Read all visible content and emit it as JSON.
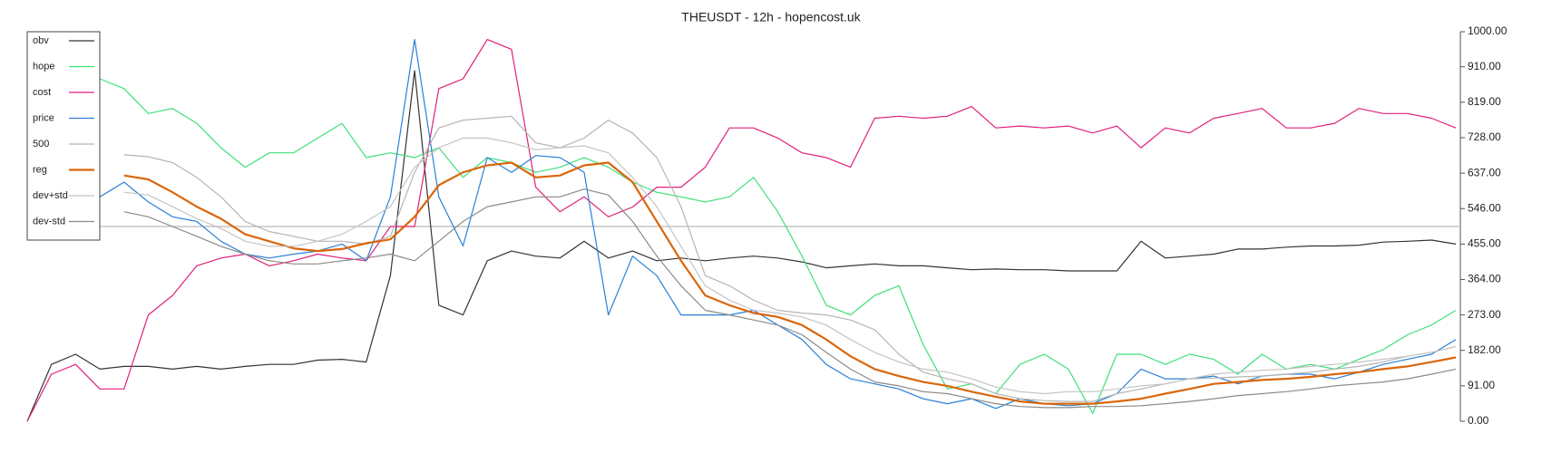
{
  "chart_data": {
    "type": "line",
    "title": "THEUSDT - 12h - hopencost.uk",
    "ylim": [
      0,
      1000
    ],
    "yticks": [
      {
        "value": 0,
        "label": "0.00"
      },
      {
        "value": 91,
        "label": "91.00"
      },
      {
        "value": 182,
        "label": "182.00"
      },
      {
        "value": 273,
        "label": "273.00"
      },
      {
        "value": 364,
        "label": "364.00"
      },
      {
        "value": 455,
        "label": "455.00"
      },
      {
        "value": 546,
        "label": "546.00"
      },
      {
        "value": 637,
        "label": "637.00"
      },
      {
        "value": 728,
        "label": "728.00"
      },
      {
        "value": 819,
        "label": "819.00"
      },
      {
        "value": 910,
        "label": "910.00"
      },
      {
        "value": 1000,
        "label": "1000.00"
      }
    ],
    "reference_line": 500,
    "legend": "upper left",
    "series": [
      {
        "name": "obv",
        "color": "#333333",
        "values": [
          0,
          146,
          172,
          134,
          141,
          141,
          134,
          141,
          134,
          141,
          146,
          146,
          157,
          159,
          152,
          374,
          900,
          298,
          273,
          412,
          437,
          424,
          419,
          462,
          419,
          437,
          412,
          419,
          412,
          419,
          424,
          419,
          409,
          394,
          399,
          404,
          399,
          399,
          394,
          389,
          391,
          389,
          389,
          386,
          386,
          386,
          462,
          419,
          424,
          429,
          442,
          442,
          447,
          450,
          450,
          452,
          460,
          462,
          465,
          455
        ]
      },
      {
        "name": "hope",
        "color": "#3ee07a",
        "values": [
          null,
          null,
          null,
          879,
          854,
          790,
          803,
          765,
          702,
          652,
          689,
          689,
          727,
          765,
          677,
          689,
          677,
          702,
          626,
          677,
          664,
          639,
          652,
          677,
          652,
          614,
          588,
          576,
          563,
          576,
          626,
          538,
          424,
          298,
          273,
          323,
          348,
          197,
          83,
          96,
          71,
          146,
          172,
          134,
          20,
          172,
          172,
          146,
          172,
          159,
          121,
          172,
          134,
          146,
          134,
          159,
          184,
          222,
          247,
          285
        ]
      },
      {
        "name": "cost",
        "color": "#e0207c",
        "values": [
          0,
          121,
          146,
          83,
          83,
          273,
          323,
          399,
          419,
          429,
          399,
          412,
          429,
          419,
          412,
          500,
          500,
          854,
          879,
          980,
          955,
          601,
          538,
          576,
          525,
          550,
          601,
          601,
          652,
          753,
          753,
          727,
          689,
          677,
          652,
          778,
          783,
          778,
          783,
          808,
          753,
          758,
          753,
          758,
          740,
          758,
          702,
          753,
          740,
          778,
          790,
          803,
          753,
          753,
          765,
          803,
          790,
          790,
          778,
          753
        ]
      },
      {
        "name": "price",
        "color": "#2a80d6",
        "values": [
          null,
          null,
          null,
          576,
          614,
          563,
          525,
          513,
          462,
          429,
          419,
          429,
          437,
          455,
          412,
          576,
          980,
          576,
          450,
          677,
          639,
          682,
          677,
          639,
          273,
          424,
          374,
          273,
          273,
          273,
          285,
          247,
          210,
          146,
          109,
          96,
          83,
          58,
          45,
          58,
          33,
          58,
          45,
          40,
          45,
          71,
          134,
          109,
          109,
          116,
          96,
          116,
          121,
          121,
          109,
          126,
          146,
          159,
          172,
          210
        ]
      },
      {
        "name": "500",
        "color": "#b5b5b5",
        "values": [
          null,
          null,
          null,
          null,
          684,
          679,
          664,
          626,
          576,
          513,
          487,
          475,
          462,
          462,
          455,
          475,
          639,
          753,
          773,
          778,
          783,
          715,
          702,
          727,
          773,
          740,
          677,
          551,
          374,
          348,
          311,
          285,
          278,
          273,
          260,
          235,
          172,
          126,
          109,
          96,
          71,
          58,
          53,
          51,
          51,
          71,
          83,
          96,
          109,
          111,
          114,
          116,
          121,
          126,
          134,
          141,
          152,
          167,
          177,
          192
        ]
      },
      {
        "name": "reg",
        "color": "#d9660b",
        "values": [
          null,
          null,
          null,
          null,
          631,
          621,
          588,
          551,
          520,
          480,
          462,
          444,
          437,
          442,
          457,
          467,
          525,
          606,
          639,
          657,
          664,
          626,
          631,
          657,
          664,
          614,
          513,
          412,
          323,
          298,
          278,
          268,
          247,
          210,
          167,
          134,
          116,
          101,
          91,
          76,
          63,
          51,
          45,
          45,
          45,
          51,
          58,
          71,
          83,
          96,
          101,
          106,
          109,
          114,
          121,
          126,
          134,
          141,
          152,
          164
        ]
      },
      {
        "name": "dev+std",
        "color": "#c4c4c4",
        "values": [
          null,
          null,
          null,
          null,
          588,
          581,
          551,
          520,
          495,
          462,
          449,
          449,
          462,
          480,
          513,
          551,
          652,
          702,
          727,
          727,
          715,
          697,
          702,
          707,
          689,
          626,
          551,
          449,
          348,
          311,
          285,
          278,
          268,
          247,
          210,
          177,
          152,
          134,
          126,
          109,
          88,
          76,
          71,
          76,
          76,
          83,
          91,
          96,
          109,
          121,
          126,
          131,
          134,
          141,
          146,
          152,
          159,
          167,
          177,
          192
        ]
      },
      {
        "name": "dev-std",
        "color": "#8a8a8a",
        "values": [
          null,
          null,
          null,
          null,
          538,
          525,
          500,
          475,
          449,
          429,
          412,
          404,
          404,
          412,
          419,
          429,
          412,
          462,
          513,
          551,
          563,
          576,
          576,
          596,
          581,
          513,
          424,
          348,
          285,
          273,
          260,
          247,
          222,
          177,
          134,
          101,
          91,
          76,
          71,
          58,
          45,
          38,
          35,
          35,
          38,
          38,
          40,
          45,
          51,
          58,
          66,
          71,
          76,
          83,
          91,
          96,
          101,
          109,
          121,
          134
        ]
      }
    ]
  }
}
